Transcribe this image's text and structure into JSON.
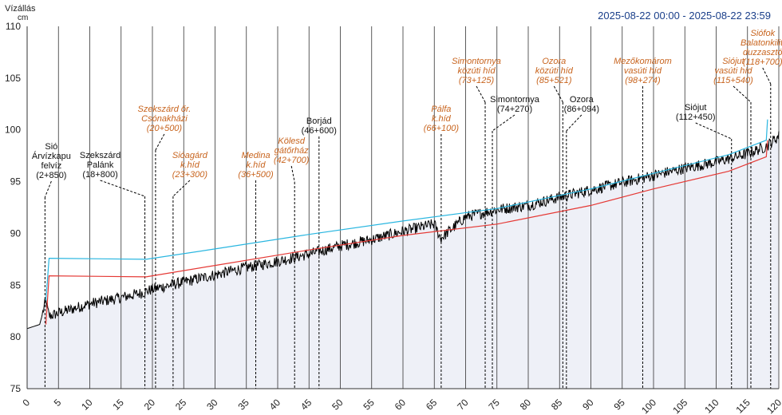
{
  "header": {
    "y_title": "Vízállás",
    "y_unit": "cm",
    "date_range": "2025-08-22 00:00 - 2025-08-22 23:59"
  },
  "chart_data": {
    "type": "line",
    "xlim": [
      0,
      120
    ],
    "ylim": [
      75,
      110
    ],
    "x_ticks": [
      0,
      5,
      10,
      15,
      20,
      25,
      30,
      35,
      40,
      45,
      50,
      55,
      60,
      65,
      70,
      75,
      80,
      85,
      90,
      95,
      100,
      105,
      110,
      115,
      120
    ],
    "y_ticks": [
      75,
      80,
      85,
      90,
      95,
      100,
      105,
      110
    ],
    "grid": "vertical",
    "series": [
      {
        "color": "#000000",
        "style": "noisy",
        "points": [
          [
            0,
            80.8
          ],
          [
            2,
            81.2
          ],
          [
            3,
            83.5
          ],
          [
            3.5,
            82.0
          ],
          [
            5,
            82.3
          ],
          [
            10,
            83.2
          ],
          [
            15,
            83.8
          ],
          [
            18,
            84.2
          ],
          [
            20,
            84.6
          ],
          [
            25,
            85.3
          ],
          [
            30,
            86.0
          ],
          [
            35,
            86.7
          ],
          [
            40,
            87.3
          ],
          [
            45,
            88.0
          ],
          [
            50,
            88.8
          ],
          [
            55,
            89.4
          ],
          [
            60,
            90.2
          ],
          [
            65,
            90.9
          ],
          [
            66,
            89.5
          ],
          [
            70,
            91.6
          ],
          [
            75,
            92.3
          ],
          [
            80,
            92.7
          ],
          [
            85,
            93.5
          ],
          [
            90,
            94.2
          ],
          [
            95,
            94.9
          ],
          [
            100,
            95.6
          ],
          [
            105,
            96.3
          ],
          [
            110,
            96.9
          ],
          [
            115,
            97.7
          ],
          [
            118,
            98.4
          ],
          [
            120,
            99.4
          ]
        ]
      },
      {
        "color": "#e53935",
        "style": "smooth",
        "points": [
          [
            3,
            81.2
          ],
          [
            3.5,
            85.9
          ],
          [
            19,
            85.8
          ],
          [
            30,
            86.9
          ],
          [
            45,
            88.4
          ],
          [
            60,
            89.8
          ],
          [
            75,
            90.9
          ],
          [
            90,
            92.7
          ],
          [
            100,
            94.3
          ],
          [
            112,
            96.0
          ],
          [
            118,
            97.4
          ],
          [
            118.2,
            99.0
          ]
        ]
      },
      {
        "color": "#29b6e0",
        "style": "smooth",
        "points": [
          [
            3,
            83.5
          ],
          [
            3.5,
            87.6
          ],
          [
            19,
            87.5
          ],
          [
            30,
            88.5
          ],
          [
            45,
            89.9
          ],
          [
            60,
            91.2
          ],
          [
            75,
            92.4
          ],
          [
            90,
            94.3
          ],
          [
            100,
            95.8
          ],
          [
            112,
            97.6
          ],
          [
            118,
            99.0
          ],
          [
            118.2,
            101.0
          ]
        ]
      }
    ],
    "annotations": [
      {
        "x": 2.85,
        "lines": [
          "Sió",
          "Árvízkapu",
          "felvíz",
          "(2+850)"
        ],
        "style": "black"
      },
      {
        "x": 18.8,
        "lines": [
          "Szekszárd",
          "Palánk",
          "(18+800)"
        ],
        "style": "black"
      },
      {
        "x": 20.5,
        "lines": [
          "Szekszárd őr.",
          "Csónakházi",
          "(20+500)"
        ],
        "style": "orange"
      },
      {
        "x": 23.3,
        "lines": [
          "Sióagárd",
          "k.híd",
          "(23+300)"
        ],
        "style": "orange"
      },
      {
        "x": 36.5,
        "lines": [
          "Medina",
          "k.híd",
          "(36+500)"
        ],
        "style": "orange"
      },
      {
        "x": 42.7,
        "lines": [
          "Kölesd",
          "gátőrház",
          "(42+700)"
        ],
        "style": "orange"
      },
      {
        "x": 46.6,
        "lines": [
          "Borjád",
          "(46+600)"
        ],
        "style": "black"
      },
      {
        "x": 66.1,
        "lines": [
          "Pálfa",
          "k.híd",
          "(66+100)"
        ],
        "style": "orange"
      },
      {
        "x": 73.125,
        "lines": [
          "Simontornya",
          "közúti híd",
          "(73+125)"
        ],
        "style": "orange"
      },
      {
        "x": 74.27,
        "lines": [
          "Simontornya",
          "(74+270)"
        ],
        "style": "black"
      },
      {
        "x": 85.521,
        "lines": [
          "Ozora",
          "közúti híd",
          "(85+521)"
        ],
        "style": "orange"
      },
      {
        "x": 86.094,
        "lines": [
          "Ozora",
          "(86+094)"
        ],
        "style": "black"
      },
      {
        "x": 98.274,
        "lines": [
          "Mezőkomárom",
          "vasúti híd",
          "(98+274)"
        ],
        "style": "orange"
      },
      {
        "x": 112.45,
        "lines": [
          "Siójut",
          "(112+450)"
        ],
        "style": "black"
      },
      {
        "x": 115.54,
        "lines": [
          "Siójut",
          "vasúti híd",
          "(115+540)"
        ],
        "style": "orange"
      },
      {
        "x": 118.7,
        "lines": [
          "Siófok",
          "Balatonkiliti",
          "duzzasztó",
          "(118+700)"
        ],
        "style": "orange"
      }
    ]
  }
}
